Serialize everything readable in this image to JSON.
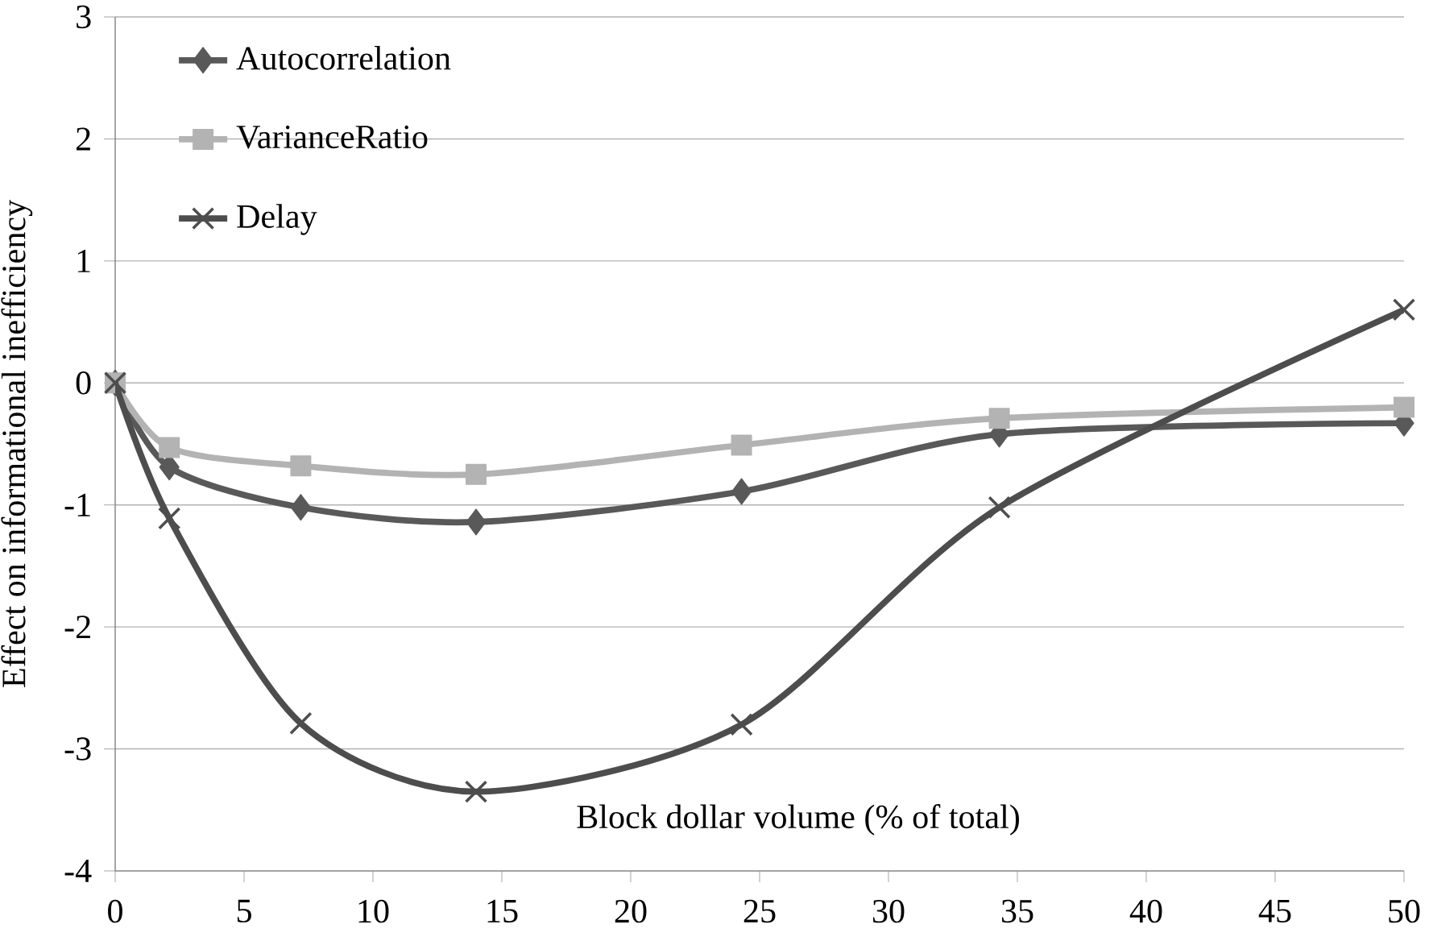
{
  "chart_data": {
    "type": "line",
    "xlabel": "Block dollar volume (% of total)",
    "ylabel": "Effect on informational inefficiency",
    "x": [
      0,
      2.1,
      7.2,
      14.0,
      24.3,
      34.3,
      50
    ],
    "series": [
      {
        "name": "Autocorrelation",
        "color": "#595959",
        "marker": "diamond",
        "values": [
          0,
          -0.69,
          -1.02,
          -1.14,
          -0.89,
          -0.42,
          -0.33
        ]
      },
      {
        "name": "VarianceRatio",
        "color": "#b3b3b3",
        "marker": "square",
        "values": [
          0,
          -0.53,
          -0.68,
          -0.75,
          -0.51,
          -0.29,
          -0.2
        ]
      },
      {
        "name": "Delay",
        "color": "#4d4d4d",
        "marker": "cross",
        "values": [
          0,
          -1.11,
          -2.79,
          -3.35,
          -2.8,
          -1.02,
          0.6
        ]
      }
    ],
    "xlim": [
      0,
      50
    ],
    "xticks": [
      0,
      5,
      10,
      15,
      20,
      25,
      30,
      35,
      40,
      45,
      50
    ],
    "ylim": [
      -4,
      3
    ],
    "yticks": [
      -4,
      -3,
      -2,
      -1,
      0,
      1,
      2,
      3
    ],
    "grid": "y",
    "legend": "top left",
    "line_style": "solid"
  }
}
